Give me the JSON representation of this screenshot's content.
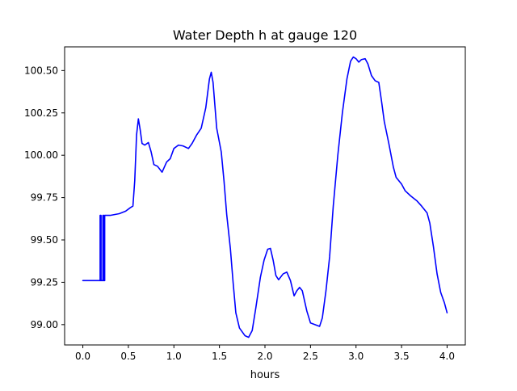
{
  "chart_data": {
    "type": "line",
    "title": "Water Depth h at gauge 120",
    "xlabel": "hours",
    "ylabel": "",
    "xlim": [
      -0.2,
      4.2
    ],
    "ylim": [
      98.88,
      100.64
    ],
    "grid": false,
    "legend": "none",
    "x_ticks": [
      0.0,
      0.5,
      1.0,
      1.5,
      2.0,
      2.5,
      3.0,
      3.5,
      4.0
    ],
    "x_tick_labels": [
      "0.0",
      "0.5",
      "1.0",
      "1.5",
      "2.0",
      "2.5",
      "3.0",
      "3.5",
      "4.0"
    ],
    "y_ticks": [
      99.0,
      99.25,
      99.5,
      99.75,
      100.0,
      100.25,
      100.5
    ],
    "y_tick_labels": [
      "99.00",
      "99.25",
      "99.50",
      "99.75",
      "100.00",
      "100.25",
      "100.50"
    ],
    "series": [
      {
        "color": "#0000ff",
        "points": [
          [
            0.0,
            99.26
          ],
          [
            0.19,
            99.26
          ],
          [
            0.19,
            99.645
          ],
          [
            0.2,
            99.645
          ],
          [
            0.2,
            99.26
          ],
          [
            0.22,
            99.26
          ],
          [
            0.22,
            99.645
          ],
          [
            0.23,
            99.645
          ],
          [
            0.23,
            99.26
          ],
          [
            0.24,
            99.26
          ],
          [
            0.24,
            99.645
          ],
          [
            0.3,
            99.645
          ],
          [
            0.4,
            99.655
          ],
          [
            0.47,
            99.67
          ],
          [
            0.52,
            99.69
          ],
          [
            0.55,
            99.7
          ],
          [
            0.57,
            99.85
          ],
          [
            0.59,
            100.12
          ],
          [
            0.61,
            100.215
          ],
          [
            0.63,
            100.15
          ],
          [
            0.65,
            100.07
          ],
          [
            0.68,
            100.06
          ],
          [
            0.72,
            100.075
          ],
          [
            0.75,
            100.02
          ],
          [
            0.78,
            99.945
          ],
          [
            0.82,
            99.935
          ],
          [
            0.87,
            99.9
          ],
          [
            0.92,
            99.96
          ],
          [
            0.96,
            99.98
          ],
          [
            1.0,
            100.04
          ],
          [
            1.05,
            100.06
          ],
          [
            1.1,
            100.055
          ],
          [
            1.16,
            100.04
          ],
          [
            1.2,
            100.07
          ],
          [
            1.25,
            100.12
          ],
          [
            1.3,
            100.16
          ],
          [
            1.35,
            100.28
          ],
          [
            1.39,
            100.45
          ],
          [
            1.41,
            100.49
          ],
          [
            1.43,
            100.43
          ],
          [
            1.47,
            100.16
          ],
          [
            1.52,
            100.02
          ],
          [
            1.55,
            99.85
          ],
          [
            1.58,
            99.65
          ],
          [
            1.62,
            99.45
          ],
          [
            1.65,
            99.25
          ],
          [
            1.68,
            99.07
          ],
          [
            1.72,
            98.98
          ],
          [
            1.78,
            98.935
          ],
          [
            1.82,
            98.925
          ],
          [
            1.86,
            98.965
          ],
          [
            1.9,
            99.1
          ],
          [
            1.95,
            99.28
          ],
          [
            1.99,
            99.38
          ],
          [
            2.03,
            99.445
          ],
          [
            2.06,
            99.45
          ],
          [
            2.09,
            99.38
          ],
          [
            2.12,
            99.29
          ],
          [
            2.15,
            99.265
          ],
          [
            2.2,
            99.3
          ],
          [
            2.24,
            99.31
          ],
          [
            2.28,
            99.26
          ],
          [
            2.32,
            99.17
          ],
          [
            2.35,
            99.2
          ],
          [
            2.38,
            99.22
          ],
          [
            2.41,
            99.2
          ],
          [
            2.46,
            99.08
          ],
          [
            2.5,
            99.01
          ],
          [
            2.55,
            99.0
          ],
          [
            2.6,
            98.99
          ],
          [
            2.63,
            99.04
          ],
          [
            2.67,
            99.2
          ],
          [
            2.71,
            99.4
          ],
          [
            2.75,
            99.7
          ],
          [
            2.8,
            100.0
          ],
          [
            2.85,
            100.25
          ],
          [
            2.9,
            100.45
          ],
          [
            2.94,
            100.555
          ],
          [
            2.97,
            100.58
          ],
          [
            3.0,
            100.57
          ],
          [
            3.03,
            100.55
          ],
          [
            3.06,
            100.565
          ],
          [
            3.1,
            100.57
          ],
          [
            3.13,
            100.54
          ],
          [
            3.17,
            100.47
          ],
          [
            3.21,
            100.44
          ],
          [
            3.25,
            100.43
          ],
          [
            3.28,
            100.32
          ],
          [
            3.31,
            100.2
          ],
          [
            3.36,
            100.07
          ],
          [
            3.41,
            99.93
          ],
          [
            3.44,
            99.87
          ],
          [
            3.5,
            99.83
          ],
          [
            3.54,
            99.79
          ],
          [
            3.6,
            99.76
          ],
          [
            3.67,
            99.73
          ],
          [
            3.72,
            99.7
          ],
          [
            3.78,
            99.66
          ],
          [
            3.81,
            99.6
          ],
          [
            3.85,
            99.46
          ],
          [
            3.89,
            99.3
          ],
          [
            3.93,
            99.19
          ],
          [
            3.97,
            99.13
          ],
          [
            4.0,
            99.07
          ]
        ]
      }
    ]
  }
}
